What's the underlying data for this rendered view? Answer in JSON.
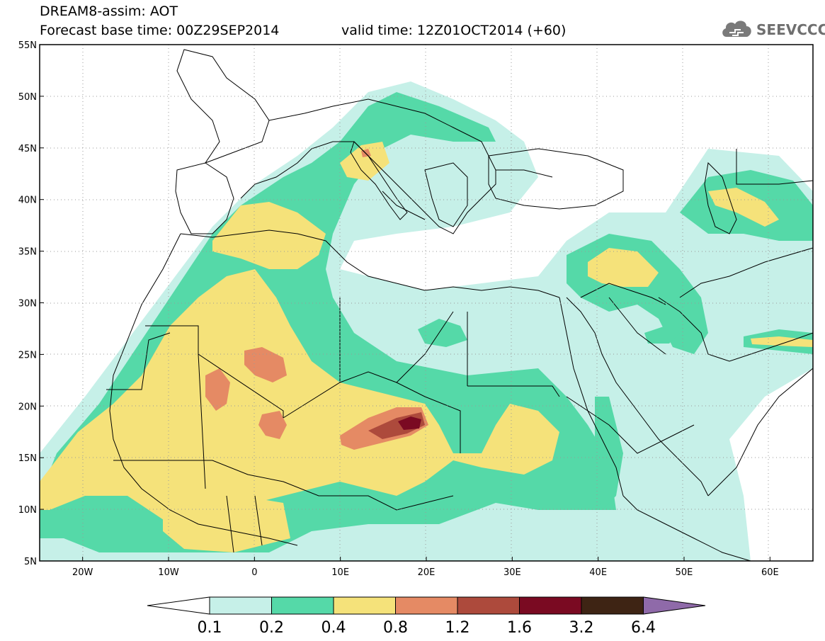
{
  "header": {
    "title": "DREAM8-assim: AOT",
    "base_time": "Forecast base time: 00Z29SEP2014",
    "valid_time": "valid time: 12Z01OCT2014 (+60)",
    "logo_text": "SEEVCCC"
  },
  "map": {
    "lon_range": [
      -25,
      65
    ],
    "lat_range": [
      5,
      55
    ],
    "lon_ticks": [
      {
        "value": -20,
        "label": "20W"
      },
      {
        "value": -10,
        "label": "10W"
      },
      {
        "value": 0,
        "label": "0"
      },
      {
        "value": 10,
        "label": "10E"
      },
      {
        "value": 20,
        "label": "20E"
      },
      {
        "value": 30,
        "label": "30E"
      },
      {
        "value": 40,
        "label": "40E"
      },
      {
        "value": 50,
        "label": "50E"
      },
      {
        "value": 60,
        "label": "60E"
      }
    ],
    "lat_ticks": [
      {
        "value": 5,
        "label": "5N"
      },
      {
        "value": 10,
        "label": "10N"
      },
      {
        "value": 15,
        "label": "15N"
      },
      {
        "value": 20,
        "label": "20N"
      },
      {
        "value": 25,
        "label": "25N"
      },
      {
        "value": 30,
        "label": "30N"
      },
      {
        "value": 35,
        "label": "35N"
      },
      {
        "value": 40,
        "label": "40N"
      },
      {
        "value": 45,
        "label": "45N"
      },
      {
        "value": 50,
        "label": "50N"
      },
      {
        "value": 55,
        "label": "55N"
      }
    ],
    "grid": "dotted",
    "field": "Aerosol optical thickness"
  },
  "colorbar": {
    "levels": [
      "0.1",
      "0.2",
      "0.4",
      "0.8",
      "1.2",
      "1.6",
      "3.2",
      "6.4"
    ],
    "colors": [
      "#ffffff",
      "#c6f0e8",
      "#55d9a8",
      "#f5e27a",
      "#e58a64",
      "#ad4a3c",
      "#7a0a22",
      "#3e2414",
      "#8f6aa9"
    ]
  }
}
